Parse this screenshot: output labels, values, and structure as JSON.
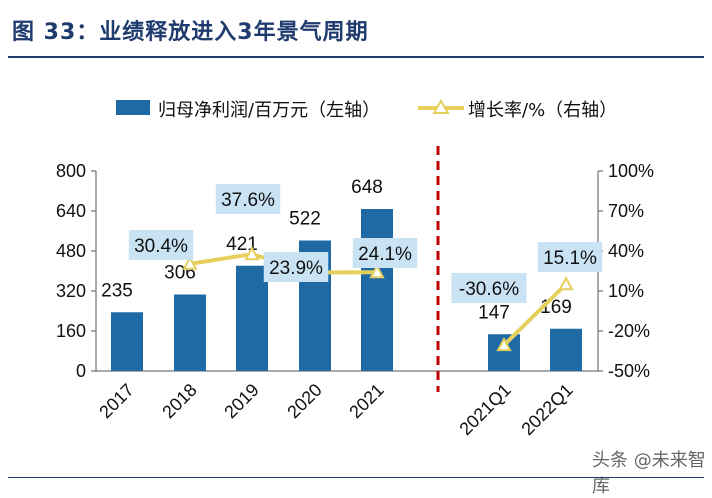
{
  "title": "图 33：业绩释放进入3年景气周期",
  "legend": {
    "bar_label": "归母净利润/百万元（左轴）",
    "line_label": "增长率/%（右轴）"
  },
  "watermark": "头条 @未来智库",
  "colors": {
    "bar": "#1f6aa5",
    "line": "#e6cf5c",
    "label_box": "#c9e3f5",
    "divider": "#c00000",
    "title": "#1f3b6e"
  },
  "chart_data": {
    "type": "bar",
    "categories": [
      "2017",
      "2018",
      "2019",
      "2020",
      "2021",
      "2021Q1",
      "2022Q1"
    ],
    "series": [
      {
        "name": "归母净利润/百万元（左轴）",
        "type": "bar",
        "axis": "left",
        "values": [
          235,
          306,
          421,
          522,
          648,
          147,
          169
        ]
      },
      {
        "name": "增长率/%（右轴）",
        "type": "line",
        "axis": "right",
        "values": [
          null,
          30.4,
          37.6,
          23.9,
          24.1,
          -30.6,
          15.1
        ],
        "labels": [
          "",
          "30.4%",
          "37.6%",
          "23.9%",
          "24.1%",
          "-30.6%",
          "15.1%"
        ]
      }
    ],
    "y_left": {
      "ylim": [
        0,
        800
      ],
      "ticks": [
        0,
        160,
        320,
        480,
        640,
        800
      ],
      "tick_labels": [
        "0",
        "160",
        "320",
        "480",
        "640",
        "800"
      ]
    },
    "y_right": {
      "ylim": [
        -50,
        100
      ],
      "ticks": [
        -50,
        -20,
        10,
        40,
        70,
        100
      ],
      "tick_labels": [
        "-50%",
        "-20%",
        "10%",
        "40%",
        "70%",
        "100%"
      ]
    },
    "legend_position": "top",
    "divider_between": [
      "2021",
      "2021Q1"
    ],
    "grid": false
  }
}
